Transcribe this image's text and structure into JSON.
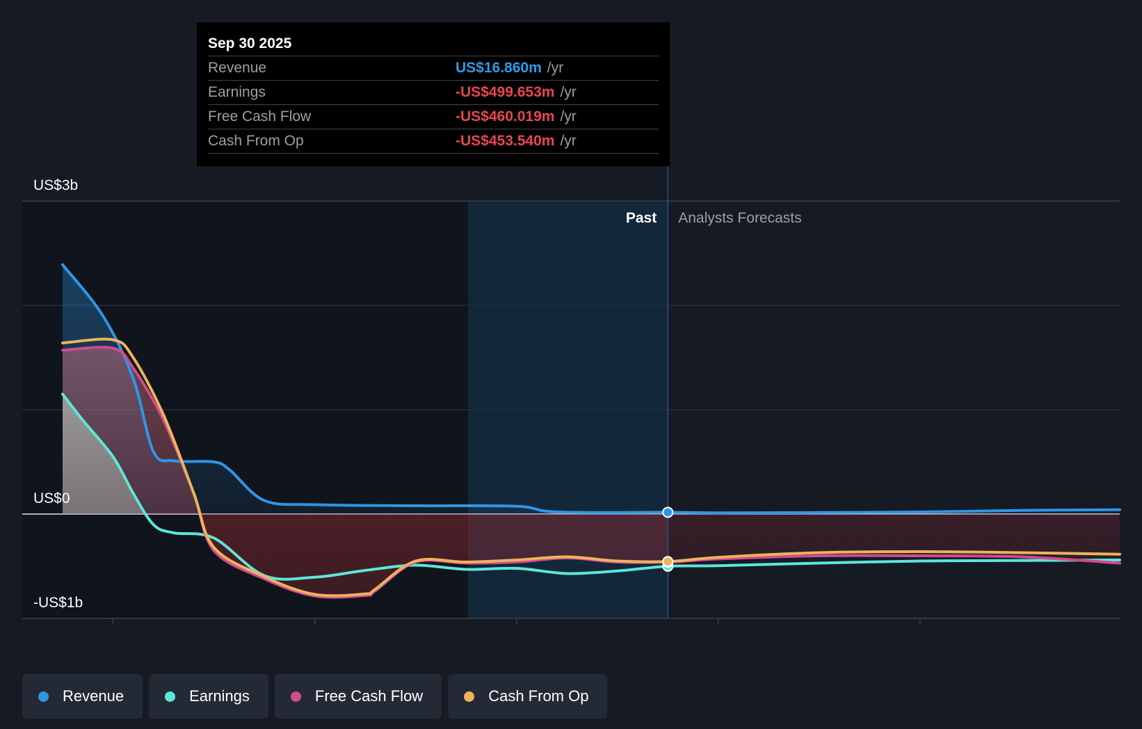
{
  "tooltip": {
    "date": "Sep 30 2025",
    "rows": [
      {
        "label": "Revenue",
        "value": "US$16.860m",
        "unit": "/yr",
        "color": "#2e9be8"
      },
      {
        "label": "Earnings",
        "value": "-US$499.653m",
        "unit": "/yr",
        "color": "#ea4551"
      },
      {
        "label": "Free Cash Flow",
        "value": "-US$460.019m",
        "unit": "/yr",
        "color": "#ea4551"
      },
      {
        "label": "Cash From Op",
        "value": "-US$453.540m",
        "unit": "/yr",
        "color": "#ea4551"
      }
    ]
  },
  "legend": [
    {
      "label": "Revenue",
      "color": "#2e96e6"
    },
    {
      "label": "Earnings",
      "color": "#5de6d8"
    },
    {
      "label": "Free Cash Flow",
      "color": "#d04a8e"
    },
    {
      "label": "Cash From Op",
      "color": "#edb35c"
    }
  ],
  "chart_data": {
    "type": "line",
    "title": "",
    "ylim": [
      -1000,
      3000
    ],
    "yunit": "US$m",
    "y_tick_labels": [
      {
        "value": 3000,
        "label": "US$3b"
      },
      {
        "value": 0,
        "label": "US$0"
      },
      {
        "value": -1000,
        "label": "-US$1b"
      }
    ],
    "x_ticks": [
      2023,
      2024,
      2025,
      2026,
      2027
    ],
    "xlim": [
      2022.55,
      2027.99
    ],
    "grid": true,
    "past_label": "Past",
    "forecast_label": "Analysts Forecasts",
    "present_x": 2025.75,
    "highlight_start_x": 2024.75,
    "series": [
      {
        "name": "Revenue",
        "color": "#2e96e6",
        "points": [
          [
            2022.75,
            2390
          ],
          [
            2022.95,
            1900
          ],
          [
            2023.1,
            1300
          ],
          [
            2023.2,
            600
          ],
          [
            2023.3,
            510
          ],
          [
            2023.5,
            500
          ],
          [
            2023.58,
            420
          ],
          [
            2023.75,
            130
          ],
          [
            2024.0,
            90
          ],
          [
            2024.5,
            80
          ],
          [
            2025.0,
            75
          ],
          [
            2025.2,
            20
          ],
          [
            2025.75,
            17
          ],
          [
            2026.0,
            12
          ],
          [
            2026.5,
            15
          ],
          [
            2027.0,
            20
          ],
          [
            2027.5,
            35
          ],
          [
            2027.99,
            42
          ]
        ]
      },
      {
        "name": "Earnings",
        "color": "#5de6d8",
        "points": [
          [
            2022.75,
            1150
          ],
          [
            2022.85,
            900
          ],
          [
            2023.0,
            550
          ],
          [
            2023.1,
            200
          ],
          [
            2023.2,
            -100
          ],
          [
            2023.3,
            -180
          ],
          [
            2023.5,
            -230
          ],
          [
            2023.75,
            -590
          ],
          [
            2024.0,
            -605
          ],
          [
            2024.25,
            -540
          ],
          [
            2024.5,
            -490
          ],
          [
            2024.75,
            -530
          ],
          [
            2025.0,
            -520
          ],
          [
            2025.25,
            -570
          ],
          [
            2025.5,
            -545
          ],
          [
            2025.75,
            -500
          ],
          [
            2026.0,
            -495
          ],
          [
            2026.5,
            -470
          ],
          [
            2027.0,
            -450
          ],
          [
            2027.5,
            -445
          ],
          [
            2027.99,
            -440
          ]
        ]
      },
      {
        "name": "Free Cash Flow",
        "color": "#d04a8e",
        "points": [
          [
            2022.75,
            1570
          ],
          [
            2023.0,
            1590
          ],
          [
            2023.1,
            1400
          ],
          [
            2023.25,
            900
          ],
          [
            2023.4,
            200
          ],
          [
            2023.5,
            -350
          ],
          [
            2023.75,
            -620
          ],
          [
            2024.0,
            -785
          ],
          [
            2024.25,
            -780
          ],
          [
            2024.3,
            -735
          ],
          [
            2024.5,
            -460
          ],
          [
            2024.75,
            -470
          ],
          [
            2025.0,
            -460
          ],
          [
            2025.25,
            -420
          ],
          [
            2025.5,
            -460
          ],
          [
            2025.75,
            -460
          ],
          [
            2026.0,
            -430
          ],
          [
            2026.5,
            -400
          ],
          [
            2027.0,
            -400
          ],
          [
            2027.5,
            -410
          ],
          [
            2027.99,
            -470
          ]
        ]
      },
      {
        "name": "Cash From Op",
        "color": "#edb35c",
        "points": [
          [
            2022.75,
            1640
          ],
          [
            2023.0,
            1670
          ],
          [
            2023.1,
            1500
          ],
          [
            2023.25,
            950
          ],
          [
            2023.4,
            200
          ],
          [
            2023.5,
            -320
          ],
          [
            2023.75,
            -600
          ],
          [
            2024.0,
            -770
          ],
          [
            2024.25,
            -765
          ],
          [
            2024.3,
            -720
          ],
          [
            2024.5,
            -450
          ],
          [
            2024.75,
            -460
          ],
          [
            2025.0,
            -440
          ],
          [
            2025.25,
            -410
          ],
          [
            2025.5,
            -450
          ],
          [
            2025.75,
            -455
          ],
          [
            2026.0,
            -415
          ],
          [
            2026.5,
            -370
          ],
          [
            2027.0,
            -360
          ],
          [
            2027.5,
            -370
          ],
          [
            2027.99,
            -385
          ]
        ]
      }
    ]
  }
}
